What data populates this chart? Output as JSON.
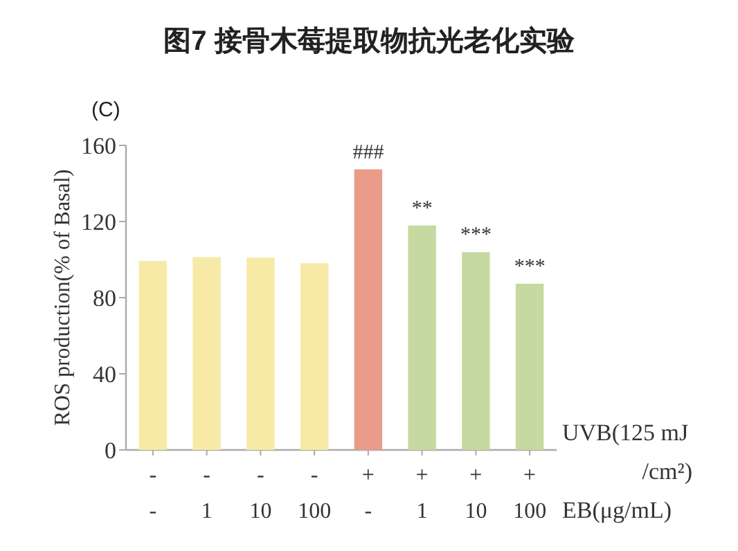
{
  "chart_data": {
    "type": "bar",
    "title": "图7 接骨木莓提取物抗光老化实验",
    "ylabel": "ROS production(% of Basal)",
    "categories": [
      "-\n-",
      "-\n1",
      "-\n10",
      "-\n100",
      "+\n-",
      "+\n1",
      "+\n10",
      "+\n100"
    ],
    "values": [
      99.3,
      101.3,
      101,
      98.1,
      147.4,
      117.9,
      103.9,
      87.3
    ],
    "colors": [
      "#f7eaa6",
      "#f7eaa6",
      "#f7eaa6",
      "#f7eaa6",
      "#eb9b8a",
      "#c6d9a0",
      "#c6d9a0",
      "#c6d9a0"
    ],
    "value_labels": [
      null,
      null,
      null,
      null,
      "###",
      "**",
      "***",
      "***"
    ],
    "ylim": [
      0,
      160
    ],
    "yticks": [
      0,
      40,
      80,
      120,
      160
    ],
    "annotations": [
      "UVB(125 mJ /cm²)",
      "EB(μg/mL)",
      "(C)"
    ]
  }
}
